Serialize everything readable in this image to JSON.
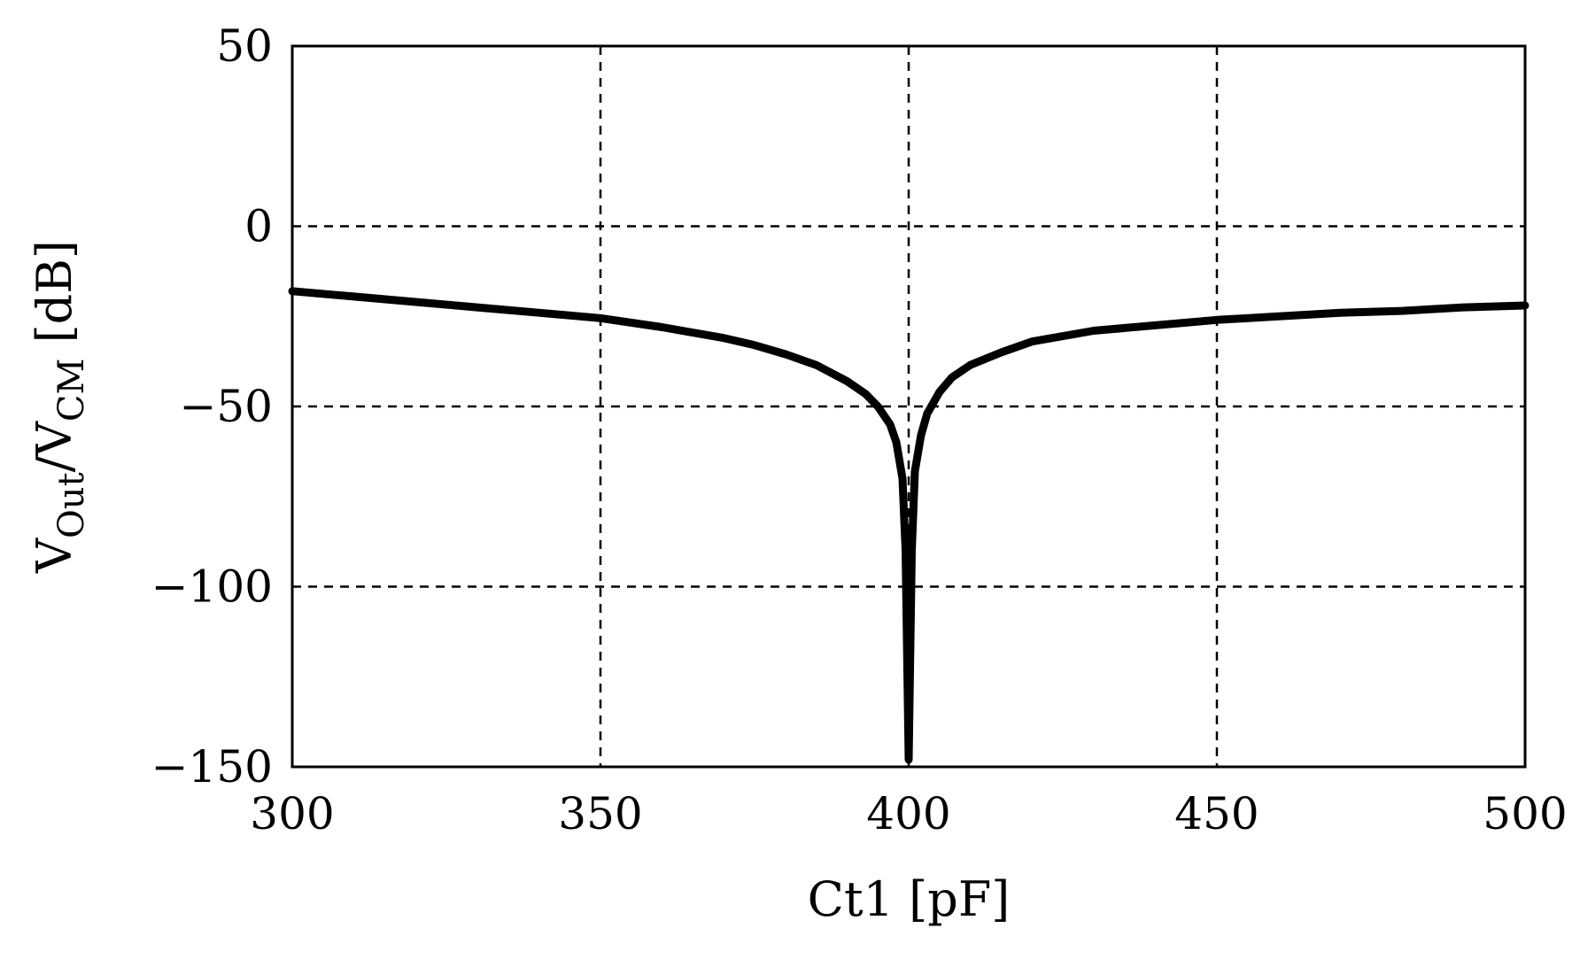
{
  "chart_data": {
    "type": "line",
    "xlabel": "Ct1 [pF]",
    "ylabel": {
      "base": "V",
      "sub1": "Out",
      "mid": "/V",
      "sub2": "CM",
      "end": " [dB]"
    },
    "xlim": [
      300,
      500
    ],
    "ylim": [
      -150,
      50
    ],
    "xticks": [
      300,
      350,
      400,
      450,
      500
    ],
    "yticks": [
      50,
      0,
      -50,
      -100,
      -150
    ],
    "xtick_labels": [
      "300",
      "350",
      "400",
      "450",
      "500"
    ],
    "ytick_labels": [
      "50",
      "0",
      "−50",
      "−100",
      "−150"
    ],
    "grid": true,
    "legend": "none",
    "series": [
      {
        "color": "#000000",
        "x": [
          300,
          310,
          320,
          330,
          340,
          350,
          360,
          370,
          375,
          380,
          385,
          390,
          393,
          395,
          397,
          398,
          399,
          399.5,
          400,
          400.5,
          401,
          402,
          403,
          405,
          407,
          410,
          415,
          420,
          430,
          440,
          450,
          460,
          470,
          480,
          490,
          500
        ],
        "y": [
          -18,
          -19.5,
          -21,
          -22.5,
          -24,
          -25.5,
          -28,
          -31,
          -33,
          -35.5,
          -38.5,
          -43,
          -46.5,
          -50,
          -55,
          -60,
          -70,
          -90,
          -148,
          -90,
          -68,
          -58,
          -52,
          -46,
          -42,
          -38.5,
          -35,
          -32,
          -29,
          -27.5,
          -26,
          -25,
          -24,
          -23.5,
          -22.5,
          -22
        ]
      }
    ]
  }
}
